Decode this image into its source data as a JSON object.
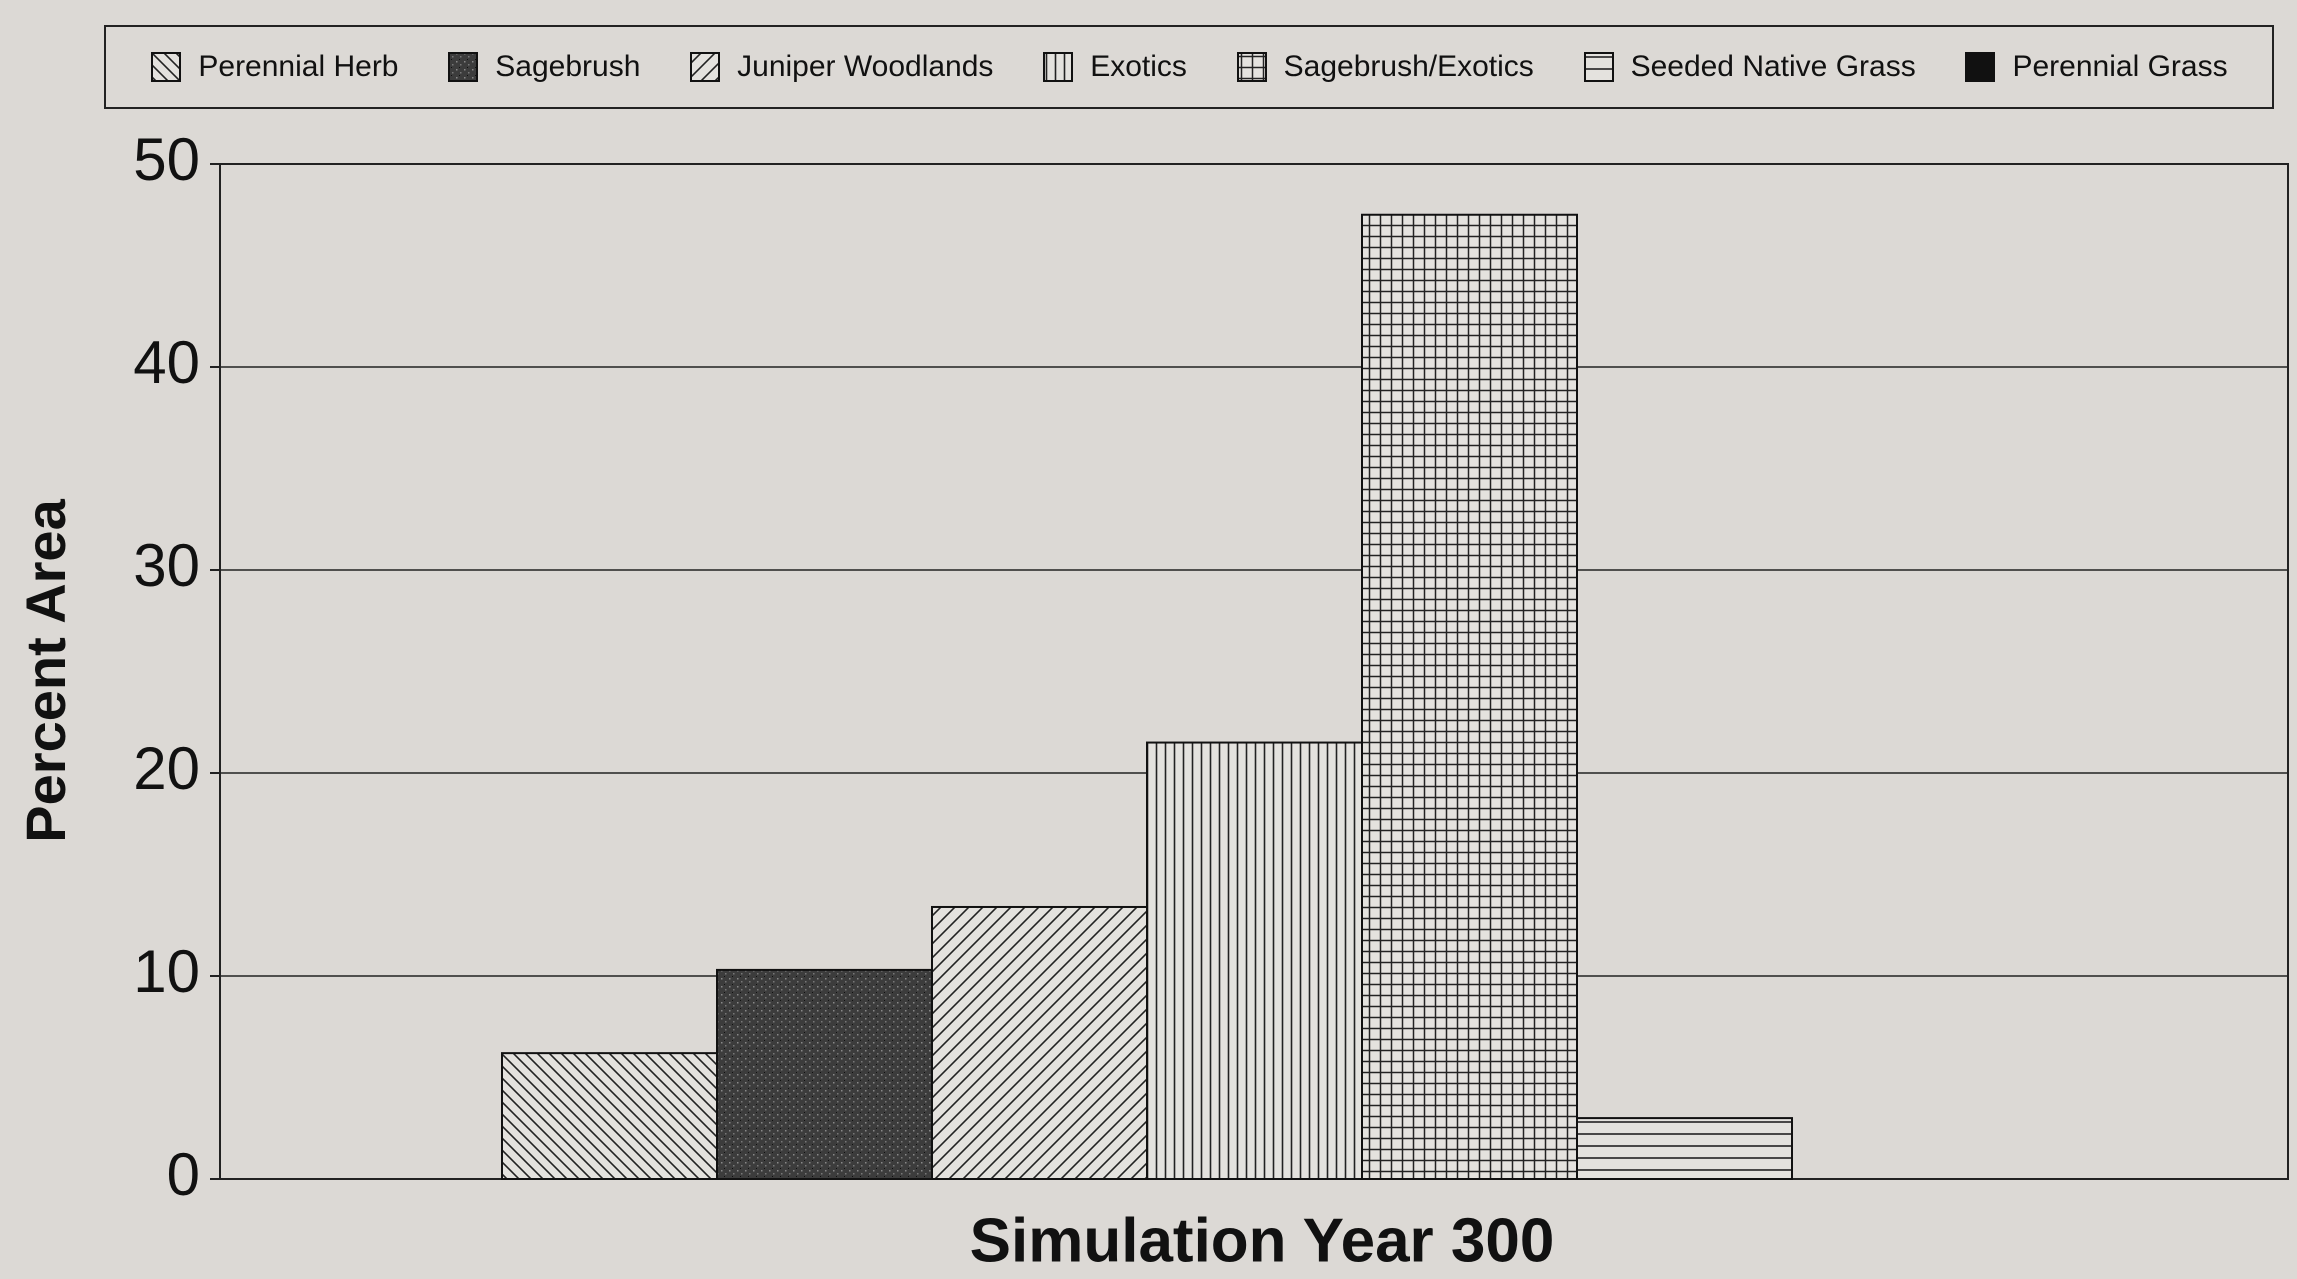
{
  "chart_data": {
    "type": "bar",
    "x_label": "Simulation Year 300",
    "y_label": "Percent Area",
    "ylim": [
      0,
      50
    ],
    "yticks": [
      0,
      10,
      20,
      30,
      40,
      50
    ],
    "grid": true,
    "series": [
      {
        "name": "Perennial Herb",
        "pattern": "backslash",
        "values": [
          6.2
        ]
      },
      {
        "name": "Sagebrush",
        "pattern": "speckle",
        "values": [
          10.3
        ]
      },
      {
        "name": "Juniper Woodlands",
        "pattern": "slash",
        "values": [
          13.4
        ]
      },
      {
        "name": "Exotics",
        "pattern": "vertical",
        "values": [
          21.5
        ]
      },
      {
        "name": "Sagebrush/Exotics",
        "pattern": "grid",
        "values": [
          47.5
        ]
      },
      {
        "name": "Seeded Native Grass",
        "pattern": "horizontal",
        "values": [
          3.0
        ]
      },
      {
        "name": "Perennial Grass",
        "pattern": "solid",
        "values": [
          0
        ]
      }
    ]
  }
}
